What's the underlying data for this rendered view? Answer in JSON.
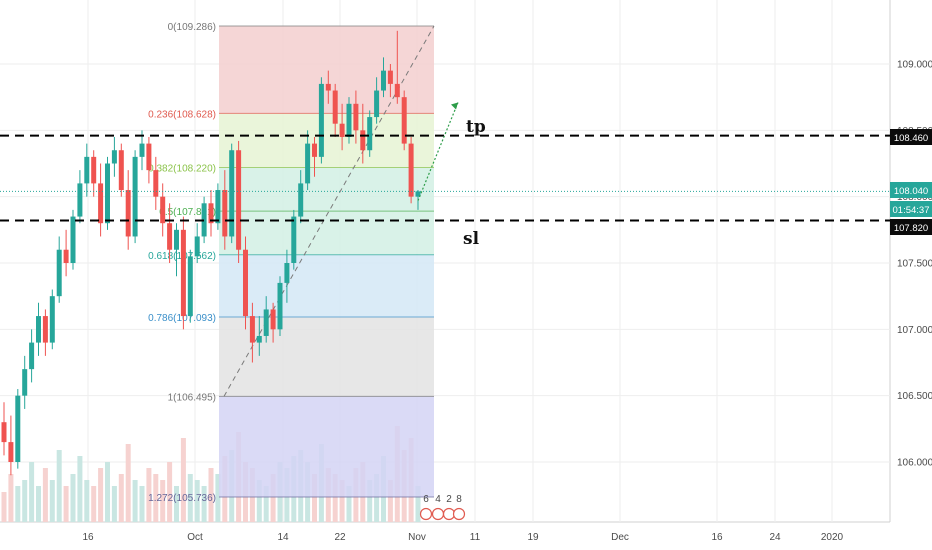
{
  "chart_data": {
    "type": "candlestick",
    "symbol_hint": "",
    "price_axis": {
      "ticks": [
        109.0,
        108.5,
        108.0,
        107.5,
        107.0,
        106.5,
        106.0
      ],
      "tick_labels": [
        "109.000",
        "108.500",
        "108.000",
        "107.500",
        "107.000",
        "106.500",
        "106.000"
      ],
      "range": [
        105.55,
        109.35
      ]
    },
    "time_axis": {
      "labels": [
        "16",
        "Oct",
        "14",
        "22",
        "Nov",
        "11",
        "19",
        "Dec",
        "16",
        "24",
        "2020"
      ]
    },
    "badges": {
      "tp_line": "108.460",
      "current_price": "108.040",
      "countdown": "01:54:37",
      "sl_line": "107.820"
    },
    "fibonacci": {
      "levels": [
        {
          "ratio": "0",
          "price": 109.286,
          "label": "0(109.286)"
        },
        {
          "ratio": "0.236",
          "price": 108.628,
          "label": "0.236(108.628)"
        },
        {
          "ratio": "0.382",
          "price": 108.22,
          "label": "0.382(108.220)"
        },
        {
          "ratio": "0.5",
          "price": 107.891,
          "label": "0.5(107.891)"
        },
        {
          "ratio": "0.618",
          "price": 107.562,
          "label": "0.618(107.562)"
        },
        {
          "ratio": "0.786",
          "price": 107.093,
          "label": "0.786(107.093)"
        },
        {
          "ratio": "1",
          "price": 106.495,
          "label": "1(106.495)"
        },
        {
          "ratio": "1.272",
          "price": 105.736,
          "label": "1.272(105.736)"
        }
      ],
      "zone_colors": [
        "#f3cfcf",
        "#e6f3d3",
        "#d2f0e4",
        "#d2f0e4",
        "#d3e7f6",
        "#e3e3e3",
        "#d4d4f5"
      ]
    },
    "horizontal_lines": [
      {
        "name": "tp",
        "price": 108.46,
        "style": "dashed",
        "color": "#000000"
      },
      {
        "name": "sl",
        "price": 107.82,
        "style": "dashed",
        "color": "#000000"
      }
    ],
    "annotations": {
      "tp": "tp",
      "sl": "sl"
    },
    "event_icons": [
      "6",
      "4",
      "2",
      "8"
    ],
    "colors": {
      "up": "#26a69a",
      "down": "#ef5350",
      "volume_up": "#c9e6e2",
      "volume_down": "#f6d2d0",
      "grid": "#eeeeee",
      "current_line": "#26a69a"
    },
    "candles": [
      [
        106.3,
        106.45,
        106.05,
        106.15
      ],
      [
        106.15,
        106.35,
        105.9,
        106.0
      ],
      [
        106.0,
        106.55,
        105.95,
        106.5
      ],
      [
        106.5,
        106.8,
        106.4,
        106.7
      ],
      [
        106.7,
        107.0,
        106.6,
        106.9
      ],
      [
        106.9,
        107.2,
        106.8,
        107.1
      ],
      [
        107.1,
        107.15,
        106.8,
        106.9
      ],
      [
        106.9,
        107.3,
        106.85,
        107.25
      ],
      [
        107.25,
        107.7,
        107.2,
        107.6
      ],
      [
        107.6,
        107.75,
        107.4,
        107.5
      ],
      [
        107.5,
        107.9,
        107.45,
        107.85
      ],
      [
        107.85,
        108.2,
        107.8,
        108.1
      ],
      [
        108.1,
        108.4,
        108.0,
        108.3
      ],
      [
        108.3,
        108.35,
        108.0,
        108.1
      ],
      [
        108.1,
        108.25,
        107.7,
        107.8
      ],
      [
        107.8,
        108.3,
        107.75,
        108.25
      ],
      [
        108.25,
        108.45,
        108.15,
        108.35
      ],
      [
        108.35,
        108.4,
        108.0,
        108.05
      ],
      [
        108.05,
        108.2,
        107.6,
        107.7
      ],
      [
        107.7,
        108.35,
        107.65,
        108.3
      ],
      [
        108.3,
        108.5,
        108.2,
        108.4
      ],
      [
        108.4,
        108.45,
        108.1,
        108.2
      ],
      [
        108.2,
        108.3,
        107.9,
        108.0
      ],
      [
        108.0,
        108.1,
        107.7,
        107.8
      ],
      [
        107.8,
        107.95,
        107.5,
        107.6
      ],
      [
        107.6,
        107.8,
        107.4,
        107.75
      ],
      [
        107.75,
        107.85,
        107.0,
        107.1
      ],
      [
        107.1,
        107.6,
        107.05,
        107.55
      ],
      [
        107.55,
        107.8,
        107.5,
        107.7
      ],
      [
        107.7,
        108.0,
        107.65,
        107.95
      ],
      [
        107.95,
        108.05,
        107.7,
        107.8
      ],
      [
        107.8,
        108.1,
        107.75,
        108.05
      ],
      [
        108.05,
        108.2,
        107.6,
        107.7
      ],
      [
        107.7,
        108.4,
        107.65,
        108.35
      ],
      [
        108.35,
        108.42,
        107.5,
        107.6
      ],
      [
        107.6,
        107.7,
        107.0,
        107.1
      ],
      [
        107.1,
        107.2,
        106.75,
        106.9
      ],
      [
        106.9,
        107.1,
        106.8,
        106.95
      ],
      [
        106.95,
        107.25,
        106.9,
        107.15
      ],
      [
        107.15,
        107.2,
        106.9,
        107.0
      ],
      [
        107.0,
        107.4,
        106.95,
        107.35
      ],
      [
        107.35,
        107.6,
        107.2,
        107.5
      ],
      [
        107.5,
        107.9,
        107.45,
        107.85
      ],
      [
        107.85,
        108.2,
        107.8,
        108.1
      ],
      [
        108.1,
        108.5,
        108.05,
        108.4
      ],
      [
        108.4,
        108.45,
        108.15,
        108.3
      ],
      [
        108.3,
        108.9,
        108.25,
        108.85
      ],
      [
        108.85,
        108.95,
        108.7,
        108.8
      ],
      [
        108.8,
        108.85,
        108.45,
        108.55
      ],
      [
        108.55,
        108.7,
        108.35,
        108.45
      ],
      [
        108.45,
        108.75,
        108.4,
        108.7
      ],
      [
        108.7,
        108.8,
        108.4,
        108.5
      ],
      [
        108.5,
        108.7,
        108.25,
        108.35
      ],
      [
        108.35,
        108.65,
        108.3,
        108.6
      ],
      [
        108.6,
        108.9,
        108.55,
        108.8
      ],
      [
        108.8,
        109.05,
        108.75,
        108.95
      ],
      [
        108.95,
        109.0,
        108.75,
        108.85
      ],
      [
        108.85,
        109.25,
        108.7,
        108.75
      ],
      [
        108.75,
        108.8,
        108.35,
        108.4
      ],
      [
        108.4,
        108.45,
        107.95,
        108.0
      ],
      [
        108.0,
        108.05,
        107.9,
        108.04
      ]
    ],
    "volumes": [
      0.25,
      0.4,
      0.3,
      0.35,
      0.5,
      0.3,
      0.45,
      0.35,
      0.6,
      0.3,
      0.4,
      0.55,
      0.35,
      0.3,
      0.45,
      0.5,
      0.3,
      0.4,
      0.65,
      0.35,
      0.3,
      0.45,
      0.4,
      0.35,
      0.5,
      0.3,
      0.7,
      0.4,
      0.35,
      0.3,
      0.45,
      0.4,
      0.55,
      0.6,
      0.75,
      0.5,
      0.45,
      0.35,
      0.3,
      0.4,
      0.5,
      0.45,
      0.55,
      0.6,
      0.5,
      0.4,
      0.65,
      0.45,
      0.4,
      0.35,
      0.3,
      0.45,
      0.5,
      0.35,
      0.4,
      0.55,
      0.35,
      0.8,
      0.6,
      0.7,
      0.3
    ]
  }
}
